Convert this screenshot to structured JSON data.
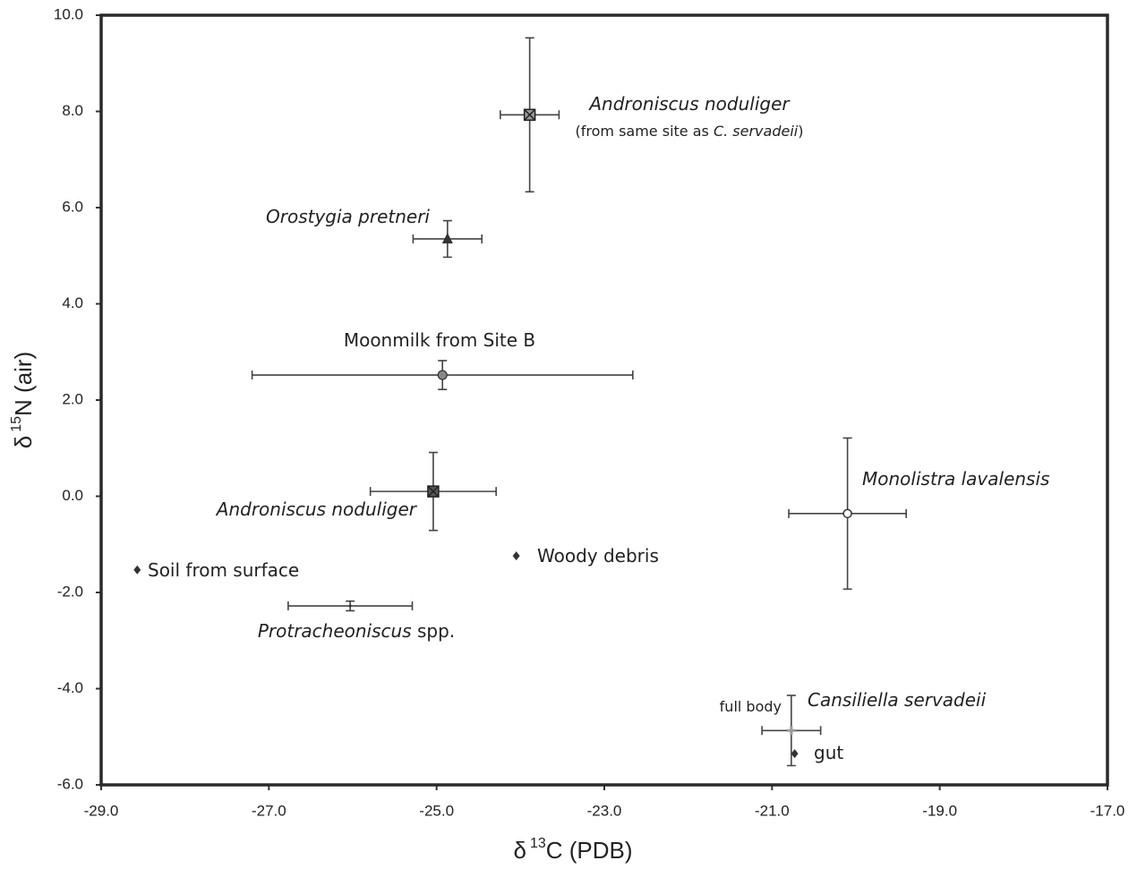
{
  "chart_data": {
    "type": "scatter",
    "xlabel": [
      "δ",
      "13",
      "C (PDB)"
    ],
    "ylabel": [
      "δ",
      "15",
      "N (air)"
    ],
    "xlim": [
      -29,
      -17
    ],
    "ylim": [
      -6,
      10
    ],
    "xticks": [
      {
        "value": -29,
        "label": "-29.0"
      },
      {
        "value": -27,
        "label": "-27.0"
      },
      {
        "value": -25,
        "label": "-25.0"
      },
      {
        "value": -23,
        "label": "-23.0"
      },
      {
        "value": -21,
        "label": "-21.0"
      },
      {
        "value": -19,
        "label": "-19.0"
      },
      {
        "value": -17,
        "label": "-17.0"
      }
    ],
    "yticks": [
      {
        "value": -6,
        "label": "-6.0"
      },
      {
        "value": -4,
        "label": "-4.0"
      },
      {
        "value": -2,
        "label": "-2.0"
      },
      {
        "value": 0,
        "label": "0.0"
      },
      {
        "value": 2,
        "label": "2.0"
      },
      {
        "value": 4,
        "label": "4.0"
      },
      {
        "value": 6,
        "label": "6.0"
      },
      {
        "value": 8,
        "label": "8.0"
      },
      {
        "value": 10,
        "label": "10.0"
      }
    ],
    "points": [
      {
        "label": [
          {
            "text": "Androniscus noduliger",
            "italic": true
          }
        ],
        "note": [
          {
            "text": "(from same site as ",
            "italic": false
          },
          {
            "text": "C. servadeii",
            "italic": true
          },
          {
            "text": ")",
            "italic": false
          }
        ],
        "x": -23.89,
        "y": 7.93,
        "xerr": 0.35,
        "yerr": 1.6,
        "marker": "x-square",
        "color": "#999999"
      },
      {
        "label": [
          {
            "text": "Orostygia pretneri",
            "italic": true
          }
        ],
        "x": -24.87,
        "y": 5.35,
        "xerr": 0.41,
        "yerr": 0.38,
        "marker": "triangle",
        "color": "#333333"
      },
      {
        "label": [
          {
            "text": "Moonmilk from Site B",
            "italic": false
          }
        ],
        "x": -24.93,
        "y": 2.52,
        "xerr": 2.27,
        "yerr": 0.3,
        "marker": "circle",
        "color": "#888888"
      },
      {
        "label": [
          {
            "text": "Androniscus noduliger",
            "italic": true
          }
        ],
        "x": -25.04,
        "y": 0.1,
        "xerr": 0.75,
        "yerr": 0.81,
        "marker": "x-square",
        "color": "#555555"
      },
      {
        "label": [
          {
            "text": "Woody debris",
            "italic": false
          }
        ],
        "x": -24.05,
        "y": -1.24,
        "marker": "diamond",
        "color": "#333333"
      },
      {
        "label": [
          {
            "text": "Soil from surface",
            "italic": false
          }
        ],
        "x": -28.57,
        "y": -1.53,
        "marker": "diamond",
        "color": "#333333"
      },
      {
        "label": [
          {
            "text": "Protracheoniscus",
            "italic": true
          },
          {
            "text": " spp.",
            "italic": false
          }
        ],
        "x": -26.03,
        "y": -2.28,
        "xerr": 0.74,
        "yerr": 0.1,
        "marker": "none",
        "color": "#333333"
      },
      {
        "label": [
          {
            "text": "Monolistra lavalensis",
            "italic": true
          }
        ],
        "x": -20.1,
        "y": -0.36,
        "xerr": 0.7,
        "yerr": 1.57,
        "marker": "open-circle",
        "color": "#333333"
      },
      {
        "label": [
          {
            "text": "Cansiliella servadeii",
            "italic": true
          }
        ],
        "note": [
          {
            "text": "full body",
            "italic": false
          }
        ],
        "x": -20.77,
        "y": -4.87,
        "xerr": 0.35,
        "yerr": 0.73,
        "marker": "plus",
        "color": "#999999"
      },
      {
        "label": [
          {
            "text": "gut",
            "italic": false
          }
        ],
        "x": -20.73,
        "y": -5.35,
        "marker": "diamond",
        "color": "#333333"
      }
    ]
  }
}
